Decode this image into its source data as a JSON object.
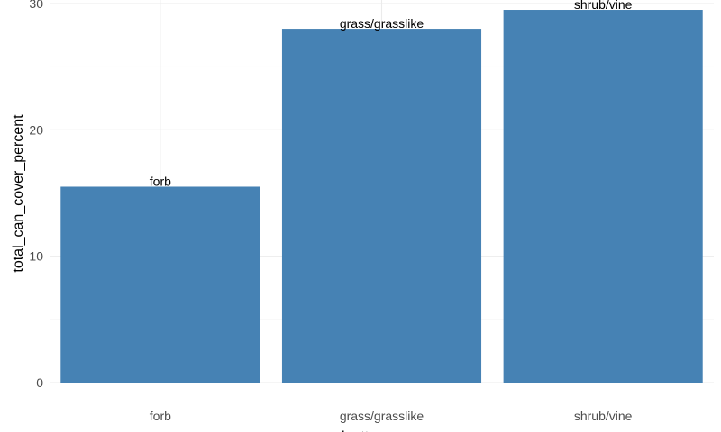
{
  "chart_data": {
    "type": "bar",
    "categories": [
      "forb",
      "grass/grasslike",
      "shrub/vine"
    ],
    "values": [
      15.5,
      28,
      29.5
    ],
    "bar_labels": [
      "forb",
      "grass/grasslike",
      "shrub/vine"
    ],
    "xlabel": "planttypegroup",
    "ylabel": "total_can_cover_percent",
    "ylim": [
      0,
      30
    ],
    "yticks": [
      "0",
      "10",
      "20",
      "30"
    ],
    "grid": true,
    "legend": "none",
    "bar_color": "#4682B4"
  }
}
